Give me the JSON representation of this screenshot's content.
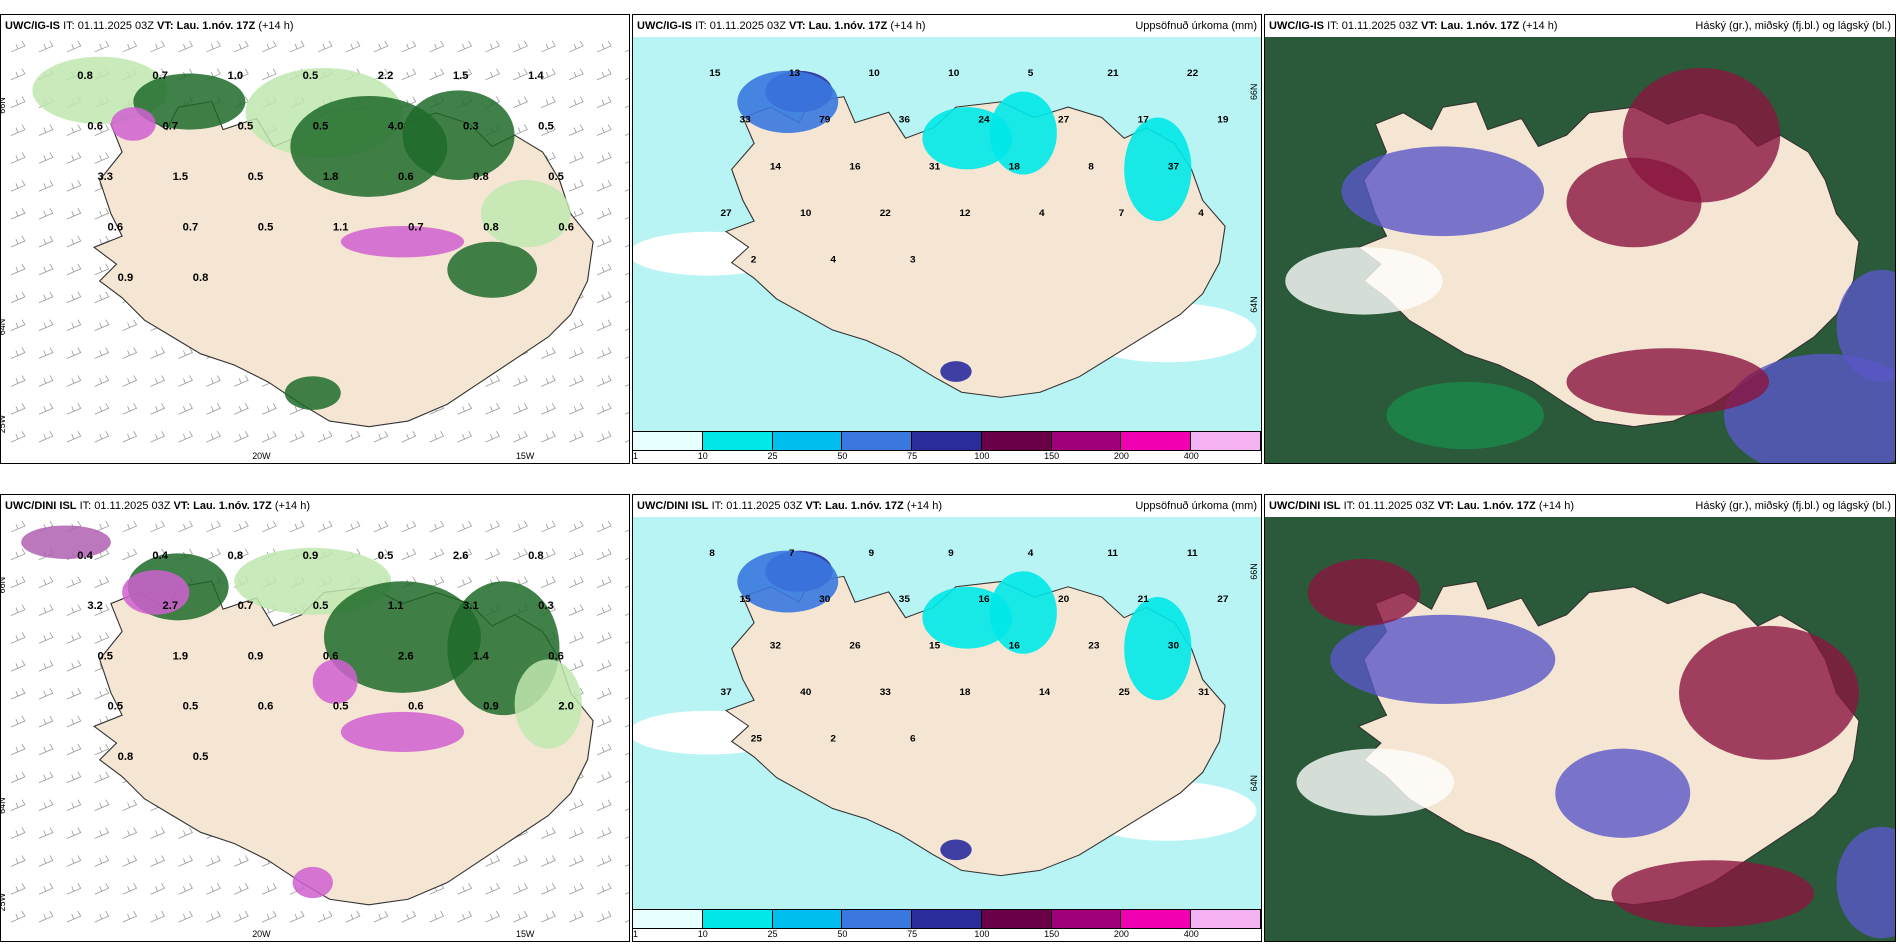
{
  "panels": [
    {
      "model": "UWC/IG-IS",
      "it": "IT: 01.11.2025 03Z",
      "vt_label": "VT:",
      "vt": "Lau. 1.nóv. 17Z",
      "lead": "(+14 h)",
      "right_title": ""
    },
    {
      "model": "UWC/IG-IS",
      "it": "IT: 01.11.2025 03Z",
      "vt_label": "VT:",
      "vt": "Lau. 1.nóv. 17Z",
      "lead": "(+14 h)",
      "right_title": "Uppsöfnuð úrkoma (mm)"
    },
    {
      "model": "UWC/IG-IS",
      "it": "IT: 01.11.2025 03Z",
      "vt_label": "VT:",
      "vt": "Lau. 1.nóv. 17Z",
      "lead": "(+14 h)",
      "right_title": "Háský (gr.), miðský (fj.bl.) og lágský (bl.)"
    },
    {
      "model": "UWC/DINI ISL",
      "it": "IT: 01.11.2025 03Z",
      "vt_label": "VT:",
      "vt": "Lau. 1.nóv. 17Z",
      "lead": "(+14 h)",
      "right_title": ""
    },
    {
      "model": "UWC/DINI ISL",
      "it": "IT: 01.11.2025 03Z",
      "vt_label": "VT:",
      "vt": "Lau. 1.nóv. 17Z",
      "lead": "(+14 h)",
      "right_title": "Uppsöfnuð úrkoma (mm)"
    },
    {
      "model": "UWC/DINI ISL",
      "it": "IT: 01.11.2025 03Z",
      "vt_label": "VT:",
      "vt": "Lau. 1.nóv. 17Z",
      "lead": "(+14 h)",
      "right_title": "Háský (gr.), miðský (fj.bl.) og lágský (bl.)"
    }
  ],
  "colorbar": {
    "colors": [
      "#e8ffff",
      "#00e8e8",
      "#00bfef",
      "#3a78e0",
      "#2b2b9c",
      "#6a0048",
      "#a0007a",
      "#f000b0",
      "#f4b4f4"
    ],
    "labels": [
      "1",
      "10",
      "25",
      "50",
      "75",
      "100",
      "150",
      "200",
      "400"
    ]
  },
  "axis_labels": {
    "lon_w": "20W",
    "lon_e": "15W",
    "lat_n": "66N",
    "lat_s": "64N",
    "lon_far": "25W"
  },
  "colors": {
    "land": "#f5e6d3",
    "sea_precip": "#b8f4f4",
    "cloud_high": "#2a5a3a",
    "cloud_mid": "#5a58c8",
    "cloud_low": "#8a1540"
  },
  "numbers": {
    "p1": [
      "0.8",
      "0.7",
      "1.0",
      "0.5",
      "2.2",
      "1.5",
      "1.4",
      "0.6",
      "0.7",
      "0.5",
      "0.5",
      "4.0",
      "0.3",
      "0.5",
      "3.3",
      "1.5",
      "0.5",
      "1.8",
      "0.6",
      "0.8",
      "0.5",
      "0.6",
      "0.7",
      "0.5",
      "1.1",
      "0.7",
      "0.8",
      "0.6",
      "0.9",
      "0.8"
    ],
    "p2": [
      "15",
      "13",
      "10",
      "10",
      "5",
      "21",
      "22",
      "33",
      "79",
      "36",
      "24",
      "27",
      "17",
      "19",
      "14",
      "16",
      "31",
      "18",
      "8",
      "37",
      "27",
      "10",
      "22",
      "12",
      "4",
      "7",
      "4",
      "2",
      "4",
      "3"
    ],
    "p4": [
      "0.4",
      "0.4",
      "0.8",
      "0.9",
      "0.5",
      "2.6",
      "0.8",
      "3.2",
      "2.7",
      "0.7",
      "0.5",
      "1.1",
      "3.1",
      "0.3",
      "0.5",
      "1.9",
      "0.9",
      "0.6",
      "2.6",
      "1.4",
      "0.6",
      "0.5",
      "0.5",
      "0.6",
      "0.5",
      "0.6",
      "0.9",
      "2.0",
      "0.8",
      "0.5"
    ],
    "p5": [
      "8",
      "7",
      "9",
      "9",
      "4",
      "11",
      "11",
      "15",
      "30",
      "35",
      "16",
      "20",
      "21",
      "27",
      "32",
      "26",
      "15",
      "16",
      "23",
      "30",
      "37",
      "40",
      "33",
      "18",
      "14",
      "25",
      "31",
      "25",
      "2",
      "6"
    ]
  }
}
